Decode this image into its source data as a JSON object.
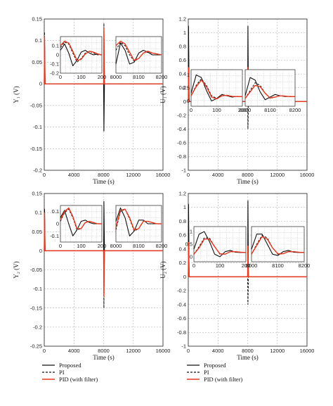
{
  "colors": {
    "proposed": "#111111",
    "pi": "#111111",
    "pid": "#e8391f",
    "grid": "#aaaaaa",
    "inset_bg": "#ffffff"
  },
  "legend": {
    "proposed": "Proposed",
    "pi": "PI",
    "pid": "PID (with filter)"
  },
  "chart_data": [
    {
      "type": "line",
      "ylabel": "Y₁ (V)",
      "xlabel": "Time (s)",
      "xlim": [
        0,
        16000
      ],
      "ylim": [
        -0.2,
        0.15
      ],
      "xticks": [
        0,
        4000,
        8000,
        12000,
        16000
      ],
      "yticks": [
        -0.2,
        -0.15,
        -0.1,
        -0.05,
        0,
        0.05,
        0.1,
        0.15
      ],
      "ytick_labels": [
        "-0.2",
        "-0.15",
        "-0.1",
        "-0.05",
        "0",
        "0.05",
        "0.1",
        "0.15"
      ],
      "spikes": [
        {
          "t": 0,
          "proposed": 0.1,
          "pi": 0.12,
          "pid": 0.11
        },
        {
          "t": 8000,
          "proposed": -0.11,
          "pi": 0.14,
          "pid": 0.13
        }
      ],
      "insets": [
        {
          "xlim": [
            0,
            200
          ],
          "ylim": [
            -0.2,
            0.2
          ],
          "xticks": [
            0,
            100,
            200
          ],
          "yticks": [
            -0.2,
            -0.1,
            0,
            0.1
          ],
          "ytick_labels": [
            "-0.2",
            "-0.1",
            "0",
            "0.1"
          ],
          "x": [
            0,
            20,
            40,
            60,
            80,
            100,
            120,
            140,
            160,
            180,
            200
          ],
          "series": [
            {
              "name": "Proposed",
              "values": [
                0.05,
                0.12,
                0.02,
                -0.12,
                -0.06,
                0.03,
                0.05,
                0.02,
                0.0,
                0.01,
                0.0
              ]
            },
            {
              "name": "PI",
              "values": [
                0.08,
                0.14,
                0.12,
                0.02,
                -0.08,
                -0.04,
                0.02,
                0.04,
                0.02,
                0.0,
                0.0
              ]
            },
            {
              "name": "PID (with filter)",
              "values": [
                0.1,
                0.15,
                0.13,
                0.04,
                -0.06,
                -0.05,
                0.01,
                0.04,
                0.03,
                0.01,
                0.0
              ]
            }
          ]
        },
        {
          "xlim": [
            8000,
            8200
          ],
          "ylim": [
            -0.2,
            0.2
          ],
          "xticks": [
            8000,
            8100,
            8200
          ],
          "yticks": [],
          "ytick_labels": [],
          "x": [
            8000,
            8020,
            8040,
            8060,
            8080,
            8100,
            8120,
            8140,
            8160,
            8180,
            8200
          ],
          "series": [
            {
              "name": "Proposed",
              "values": [
                -0.1,
                0.13,
                0.05,
                -0.1,
                -0.08,
                0.02,
                0.05,
                0.03,
                0.0,
                0.0,
                0.0
              ]
            },
            {
              "name": "PI",
              "values": [
                0.05,
                0.14,
                0.1,
                0.0,
                -0.07,
                -0.04,
                0.02,
                0.03,
                0.02,
                0.01,
                0.0
              ]
            },
            {
              "name": "PID (with filter)",
              "values": [
                0.1,
                0.15,
                0.12,
                0.03,
                -0.06,
                -0.04,
                0.02,
                0.04,
                0.02,
                0.01,
                0.0
              ]
            }
          ]
        }
      ]
    },
    {
      "type": "line",
      "ylabel": "U₁ (V)",
      "xlabel": "Time (s)",
      "xlim": [
        0,
        16000
      ],
      "ylim": [
        -1,
        1.2
      ],
      "xticks": [
        0,
        4000,
        8000,
        12000,
        16000
      ],
      "yticks": [
        -1,
        -0.8,
        -0.6,
        -0.4,
        -0.2,
        0,
        0.2,
        0.4,
        0.6,
        0.8,
        1,
        1.2
      ],
      "ytick_labels": [
        "-1",
        "-0.8",
        "-0.6",
        "-0.4",
        "-0.2",
        "0",
        "0.2",
        "0.4",
        "0.6",
        "0.8",
        "1",
        "1.2"
      ],
      "spikes": [
        {
          "t": 0,
          "proposed": 1.1,
          "pi": 0.9,
          "pid": 0.5
        },
        {
          "t": 8000,
          "proposed": 1.1,
          "pi": -0.4,
          "pid": 0.5
        }
      ],
      "insets": [
        {
          "xlim": [
            0,
            200
          ],
          "ylim": [
            -0.2,
            1.2
          ],
          "xticks": [
            0,
            100,
            200
          ],
          "yticks": [
            0,
            0.5,
            1
          ],
          "ytick_labels": [
            "0",
            "0.5",
            "1"
          ],
          "x": [
            0,
            20,
            40,
            60,
            80,
            100,
            120,
            140,
            160,
            180,
            200
          ],
          "series": [
            {
              "name": "Proposed",
              "values": [
                0.3,
                1.0,
                0.9,
                0.4,
                0.0,
                0.1,
                0.25,
                0.2,
                0.15,
                0.18,
                0.17
              ]
            },
            {
              "name": "PI",
              "values": [
                0.2,
                0.6,
                0.85,
                0.6,
                0.2,
                0.1,
                0.2,
                0.22,
                0.18,
                0.17,
                0.17
              ]
            },
            {
              "name": "PID (with filter)",
              "values": [
                0.2,
                0.55,
                0.8,
                0.55,
                0.15,
                0.08,
                0.2,
                0.22,
                0.18,
                0.17,
                0.17
              ]
            }
          ]
        },
        {
          "xlim": [
            8000,
            8200
          ],
          "ylim": [
            -0.2,
            1.2
          ],
          "xticks": [
            8000,
            8100,
            8200
          ],
          "yticks": [],
          "ytick_labels": [],
          "x": [
            8000,
            8020,
            8040,
            8060,
            8080,
            8100,
            8120,
            8140,
            8160,
            8180,
            8200
          ],
          "series": [
            {
              "name": "Proposed",
              "values": [
                0.2,
                0.9,
                0.8,
                0.35,
                0.05,
                0.15,
                0.25,
                0.2,
                0.17,
                0.18,
                0.17
              ]
            },
            {
              "name": "PI",
              "values": [
                0.1,
                0.4,
                0.7,
                0.6,
                0.3,
                0.1,
                0.15,
                0.2,
                0.19,
                0.17,
                0.17
              ]
            },
            {
              "name": "PID (with filter)",
              "values": [
                0.1,
                0.35,
                0.6,
                0.55,
                0.3,
                0.12,
                0.15,
                0.2,
                0.19,
                0.17,
                0.17
              ]
            }
          ]
        }
      ]
    },
    {
      "type": "line",
      "ylabel": "Y₂ (V)",
      "xlabel": "Time (s)",
      "xlim": [
        0,
        16000
      ],
      "ylim": [
        -0.25,
        0.15
      ],
      "xticks": [
        0,
        4000,
        8000,
        12000,
        16000
      ],
      "yticks": [
        -0.25,
        -0.2,
        -0.15,
        -0.1,
        -0.05,
        0,
        0.05,
        0.1,
        0.15
      ],
      "ytick_labels": [
        "-0.25",
        "-0.2",
        "-0.15",
        "-0.1",
        "-0.05",
        "0",
        "0.05",
        "0.1",
        "0.15"
      ],
      "spikes": [
        {
          "t": 0,
          "proposed": 0.11,
          "pi": 0.1,
          "pid": 0.1
        },
        {
          "t": 8000,
          "proposed": 0.13,
          "pi": -0.15,
          "pid": -0.12
        }
      ],
      "insets": [
        {
          "xlim": [
            0,
            200
          ],
          "ylim": [
            -0.15,
            0.15
          ],
          "xticks": [
            0,
            100,
            200
          ],
          "yticks": [
            -0.1,
            0,
            0.1
          ],
          "ytick_labels": [
            "-0.1",
            "0",
            "0.1"
          ],
          "x": [
            0,
            20,
            40,
            60,
            80,
            100,
            120,
            140,
            160,
            180,
            200
          ],
          "series": [
            {
              "name": "Proposed",
              "values": [
                0.05,
                0.11,
                0.0,
                -0.1,
                -0.05,
                0.02,
                0.03,
                0.01,
                0.0,
                0.0,
                0.0
              ]
            },
            {
              "name": "PI",
              "values": [
                0.02,
                0.09,
                0.12,
                0.05,
                -0.05,
                -0.04,
                0.01,
                0.02,
                0.01,
                0.0,
                0.0
              ]
            },
            {
              "name": "PID (with filter)",
              "values": [
                0.03,
                0.1,
                0.13,
                0.06,
                -0.04,
                -0.04,
                0.01,
                0.02,
                0.01,
                0.0,
                0.0
              ]
            }
          ]
        },
        {
          "xlim": [
            8000,
            8200
          ],
          "ylim": [
            -0.15,
            0.15
          ],
          "xticks": [
            8000,
            8100,
            8200
          ],
          "yticks": [],
          "ytick_labels": [],
          "x": [
            8000,
            8020,
            8040,
            8060,
            8080,
            8100,
            8120,
            8140,
            8160,
            8180,
            8200
          ],
          "series": [
            {
              "name": "Proposed",
              "values": [
                0.02,
                0.13,
                0.05,
                -0.1,
                -0.06,
                0.03,
                0.03,
                0.0,
                0.0,
                0.0,
                0.0
              ]
            },
            {
              "name": "PI",
              "values": [
                -0.05,
                0.1,
                0.12,
                0.04,
                -0.06,
                -0.04,
                0.02,
                0.02,
                0.01,
                0.0,
                0.0
              ]
            },
            {
              "name": "PID (with filter)",
              "values": [
                -0.03,
                0.11,
                0.12,
                0.05,
                -0.05,
                -0.04,
                0.02,
                0.02,
                0.01,
                0.0,
                0.0
              ]
            }
          ]
        }
      ]
    },
    {
      "type": "line",
      "ylabel": "U₂ (V)",
      "xlabel": "Time (s)",
      "xlim": [
        0,
        16000
      ],
      "ylim": [
        -1,
        1.2
      ],
      "xticks": [
        0,
        4000,
        8000,
        12000,
        16000
      ],
      "yticks": [
        -1,
        -0.8,
        -0.6,
        -0.4,
        -0.2,
        0,
        0.2,
        0.4,
        0.6,
        0.8,
        1,
        1.2
      ],
      "ytick_labels": [
        "-1",
        "-0.8",
        "-0.6",
        "-0.4",
        "-0.2",
        "0",
        "0.2",
        "0.4",
        "0.6",
        "0.8",
        "1",
        "1.2"
      ],
      "spikes": [
        {
          "t": 0,
          "proposed": 1.05,
          "pi": 0.9,
          "pid": 0.5
        },
        {
          "t": 8000,
          "proposed": 1.1,
          "pi": -0.4,
          "pid": 0.45
        }
      ],
      "insets": [
        {
          "xlim": [
            0,
            200
          ],
          "ylim": [
            -0.2,
            1.2
          ],
          "xticks": [
            0,
            100,
            200
          ],
          "yticks": [
            0,
            0.5,
            1
          ],
          "ytick_labels": [
            "0",
            "0.5",
            "1"
          ],
          "x": [
            0,
            20,
            40,
            60,
            80,
            100,
            120,
            140,
            160,
            180,
            200
          ],
          "series": [
            {
              "name": "Proposed",
              "values": [
                0.3,
                0.9,
                1.0,
                0.6,
                0.1,
                0.0,
                0.2,
                0.25,
                0.18,
                0.17,
                0.17
              ]
            },
            {
              "name": "PI",
              "values": [
                0.1,
                0.4,
                0.75,
                0.75,
                0.4,
                0.1,
                0.1,
                0.2,
                0.2,
                0.18,
                0.17
              ]
            },
            {
              "name": "PID (with filter)",
              "values": [
                0.1,
                0.35,
                0.7,
                0.7,
                0.4,
                0.12,
                0.1,
                0.2,
                0.2,
                0.18,
                0.17
              ]
            }
          ]
        },
        {
          "xlim": [
            8000,
            8200
          ],
          "ylim": [
            -0.2,
            1.2
          ],
          "xticks": [
            8000,
            8100,
            8200
          ],
          "yticks": [],
          "ytick_labels": [],
          "x": [
            8000,
            8020,
            8040,
            8060,
            8080,
            8100,
            8120,
            8140,
            8160,
            8180,
            8200
          ],
          "series": [
            {
              "name": "Proposed",
              "values": [
                0.3,
                0.9,
                0.9,
                0.5,
                0.1,
                0.05,
                0.2,
                0.25,
                0.18,
                0.17,
                0.17
              ]
            },
            {
              "name": "PI",
              "values": [
                0.1,
                0.5,
                0.85,
                0.75,
                0.35,
                0.1,
                0.12,
                0.2,
                0.2,
                0.18,
                0.17
              ]
            },
            {
              "name": "PID (with filter)",
              "values": [
                0.1,
                0.45,
                0.8,
                0.7,
                0.35,
                0.12,
                0.12,
                0.2,
                0.2,
                0.18,
                0.17
              ]
            }
          ]
        }
      ]
    }
  ]
}
